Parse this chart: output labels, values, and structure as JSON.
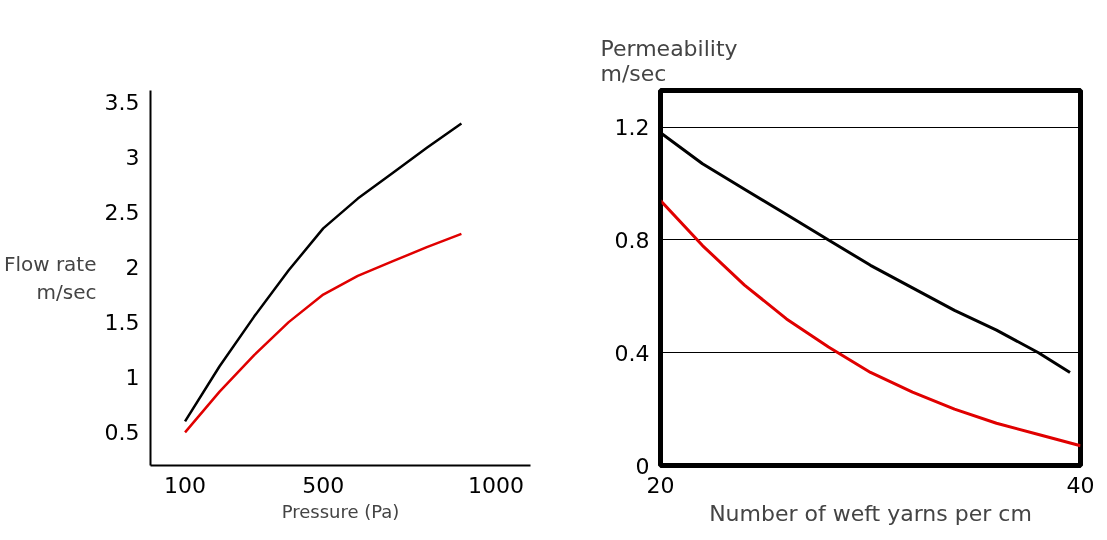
{
  "chart_data": [
    {
      "type": "line",
      "xlabel": "Pressure (Pa)",
      "ylabel": "Flow rate\nm/sec",
      "xlim": [
        0,
        1100
      ],
      "xticks": [
        100,
        500,
        1000
      ],
      "ylim": [
        0.2,
        3.6
      ],
      "yticks": [
        0.5,
        1.0,
        1.5,
        2.0,
        2.5,
        3.0,
        3.5
      ],
      "grid": false,
      "series": [
        {
          "color": "#000000",
          "x": [
            100,
            200,
            300,
            400,
            500,
            600,
            700,
            800,
            900
          ],
          "values": [
            0.6,
            1.1,
            1.55,
            1.97,
            2.35,
            2.62,
            2.85,
            3.08,
            3.3
          ]
        },
        {
          "color": "#e00000",
          "x": [
            100,
            200,
            300,
            400,
            500,
            600,
            700,
            800,
            900
          ],
          "values": [
            0.5,
            0.87,
            1.2,
            1.5,
            1.75,
            1.92,
            2.05,
            2.18,
            2.3
          ]
        }
      ]
    },
    {
      "type": "line",
      "xlabel": "Number of weft yarns per cm",
      "ylabel": "Permeability\nm/sec",
      "xlim": [
        20,
        40
      ],
      "xticks": [
        20,
        40
      ],
      "ylim": [
        0,
        1.33
      ],
      "yticks": [
        0,
        0.4,
        0.8,
        1.2
      ],
      "grid": "y",
      "series": [
        {
          "color": "#000000",
          "x": [
            20,
            22,
            24,
            26,
            28,
            30,
            32,
            34,
            36,
            38,
            39.5
          ],
          "values": [
            1.18,
            1.07,
            0.98,
            0.89,
            0.8,
            0.71,
            0.63,
            0.55,
            0.48,
            0.4,
            0.33
          ]
        },
        {
          "color": "#e00000",
          "x": [
            20,
            22,
            24,
            26,
            28,
            30,
            32,
            34,
            36,
            38,
            40
          ],
          "values": [
            0.94,
            0.78,
            0.64,
            0.52,
            0.42,
            0.33,
            0.26,
            0.2,
            0.15,
            0.11,
            0.07
          ]
        }
      ]
    }
  ]
}
